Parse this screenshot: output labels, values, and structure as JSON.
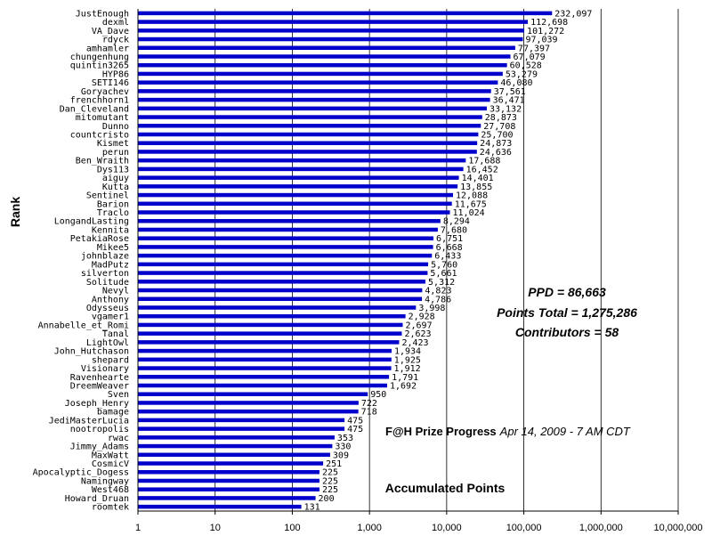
{
  "chart_data": {
    "type": "bar",
    "orientation": "horizontal",
    "x_scale": "log",
    "xlim": [
      1,
      10000000
    ],
    "x_ticks": [
      "1",
      "10",
      "100",
      "1,000",
      "10,000",
      "100,000",
      "1,000,000",
      "10,000,000"
    ],
    "xlabel": "Accumulated Points",
    "ylabel": "Rank",
    "title": "F@H Prize Progress",
    "subtitle": "Apr 14, 2009 - 7 AM CDT",
    "annotations": [
      "PPD = 86,663",
      "Points Total = 1,275,286",
      "Contributors = 58"
    ],
    "grid": "vertical",
    "bar_color": "#0000cc",
    "categories": [
      "JustEnough",
      "dexml",
      "VA_Dave",
      "rdyck",
      "amhamler",
      "chungenhung",
      "quintin3265",
      "HYP86",
      "SETI146",
      "Goryachev",
      "frenchhorn1",
      "Dan_Cleveland",
      "mitomutant",
      "Dunno",
      "countcristo",
      "Kismet",
      "perun",
      "Ben_Wraith",
      "Dys113",
      "aiguy",
      "Kutta",
      "Sentinel",
      "Barion",
      "Traclo",
      "LongandLasting",
      "Kennita",
      "PetakiaRose",
      "Mikee5",
      "johnblaze",
      "MadPutz",
      "silverton",
      "Solitude",
      "Nevyl",
      "Anthony",
      "Odysseus",
      "vgamer1",
      "Annabelle_et_Romi",
      "Tanal",
      "LightOwl",
      "John_Hutchason",
      "shepard",
      "Visionary",
      "Ravenhearte",
      "DreemWeaver",
      "Sven",
      "Joseph_Henry",
      "bamage",
      "JediMasterLucia",
      "nootropolis",
      "rwac",
      "Jimmy_Adams",
      "MaxWatt",
      "CosmicV",
      "Apocalyptic_Dogess",
      "Namingway",
      "West468",
      "Howard_Druan",
      "roomtek"
    ],
    "values": [
      232097,
      112698,
      101272,
      97039,
      77397,
      67079,
      60528,
      53279,
      46080,
      37561,
      36471,
      33132,
      28873,
      27708,
      25700,
      24873,
      24636,
      17688,
      16452,
      14401,
      13855,
      12088,
      11675,
      11024,
      8294,
      7680,
      6751,
      6668,
      6433,
      5760,
      5661,
      5312,
      4823,
      4786,
      3998,
      2928,
      2697,
      2623,
      2423,
      1934,
      1925,
      1912,
      1791,
      1692,
      950,
      722,
      718,
      475,
      475,
      353,
      330,
      309,
      251,
      225,
      225,
      225,
      200,
      131
    ],
    "value_labels": [
      "232,097",
      "112,698",
      "101,272",
      "97,039",
      "77,397",
      "67,079",
      "60,528",
      "53,279",
      "46,080",
      "37,561",
      "36,471",
      "33,132",
      "28,873",
      "27,708",
      "25,700",
      "24,873",
      "24,636",
      "17,688",
      "16,452",
      "14,401",
      "13,855",
      "12,088",
      "11,675",
      "11,024",
      "8,294",
      "7,680",
      "6,751",
      "6,668",
      "6,433",
      "5,760",
      "5,661",
      "5,312",
      "4,823",
      "4,786",
      "3,998",
      "2,928",
      "2,697",
      "2,623",
      "2,423",
      "1,934",
      "1,925",
      "1,912",
      "1,791",
      "1,692",
      "950",
      "722",
      "718",
      "475",
      "475",
      "353",
      "330",
      "309",
      "251",
      "225",
      "225",
      "225",
      "200",
      "131"
    ]
  }
}
